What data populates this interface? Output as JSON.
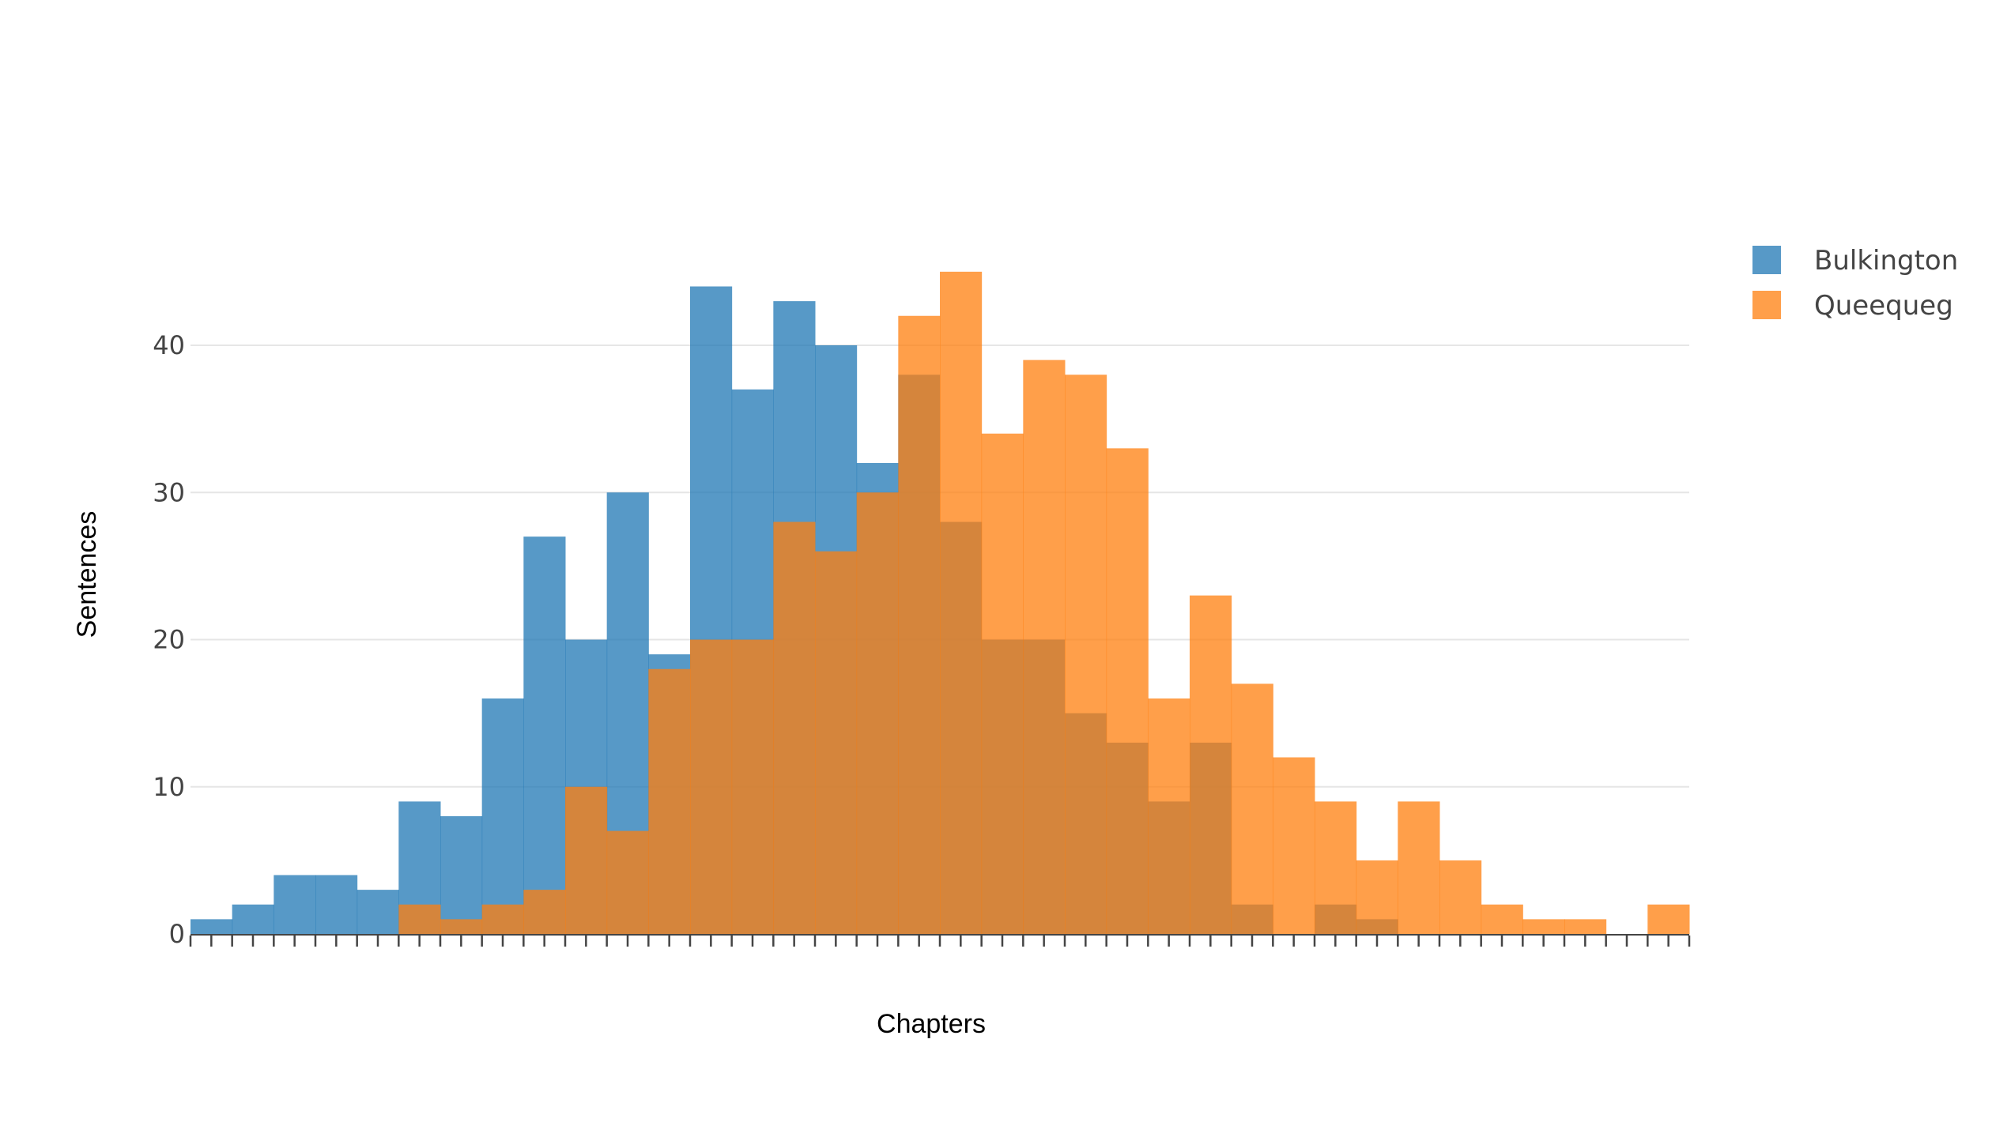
{
  "chart_data": {
    "type": "bar",
    "subtype": "overlaid-histogram",
    "title": "",
    "xlabel": "Chapters",
    "ylabel": "Sentences",
    "ylim": [
      0,
      45
    ],
    "yticks": [
      0,
      10,
      20,
      30,
      40
    ],
    "bin_count": 36,
    "grid": "horizontal",
    "legend_position": "top-right",
    "series": [
      {
        "name": "Bulkington",
        "color": "#1f77b4",
        "opacity": 0.75,
        "values": [
          1,
          2,
          4,
          4,
          3,
          9,
          8,
          16,
          27,
          20,
          30,
          19,
          44,
          37,
          43,
          40,
          32,
          38,
          28,
          20,
          20,
          15,
          13,
          9,
          13,
          2,
          0,
          2,
          1,
          0,
          0,
          0,
          0,
          0,
          0,
          0
        ]
      },
      {
        "name": "Queequeg",
        "color": "#ff7f0e",
        "opacity": 0.75,
        "values": [
          0,
          0,
          0,
          0,
          0,
          2,
          1,
          2,
          3,
          10,
          7,
          18,
          20,
          20,
          28,
          26,
          30,
          42,
          45,
          34,
          39,
          38,
          33,
          16,
          23,
          17,
          12,
          9,
          5,
          9,
          5,
          2,
          1,
          1,
          0,
          2
        ]
      }
    ]
  }
}
